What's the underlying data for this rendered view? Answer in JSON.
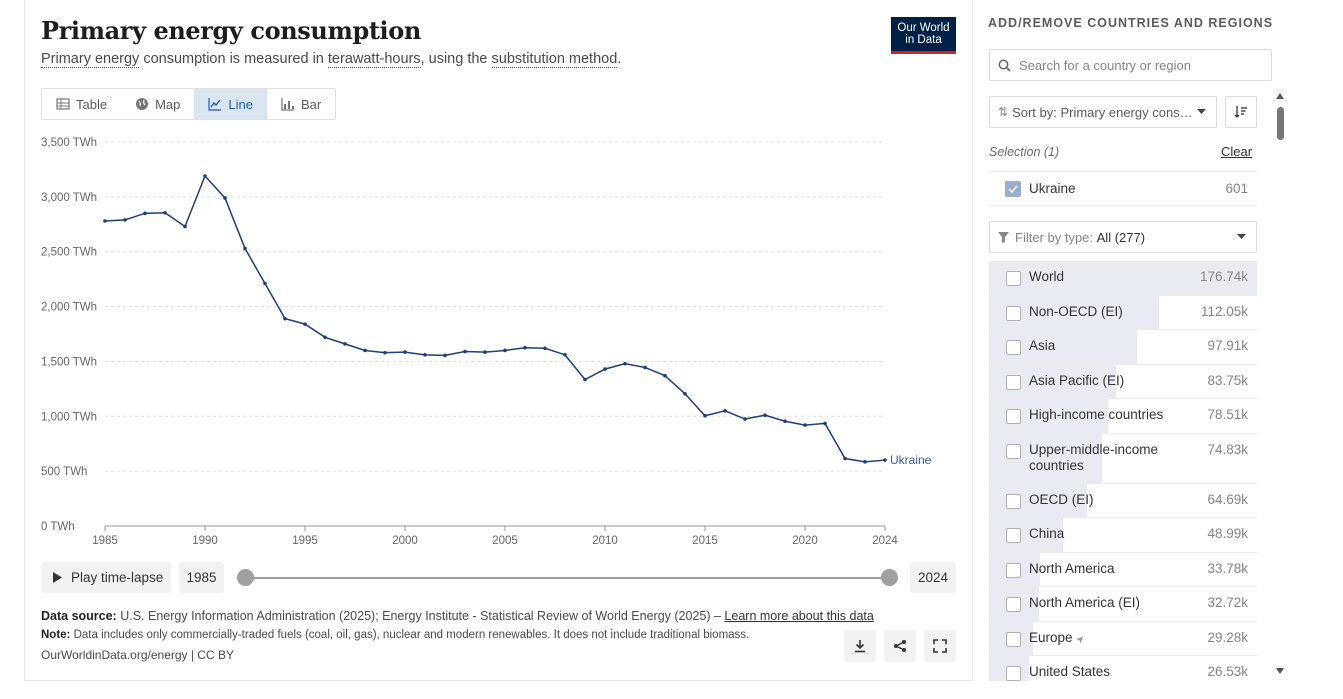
{
  "header": {
    "title": "Primary energy consumption",
    "subtitle_parts": [
      "Primary energy",
      " consumption is measured in ",
      "terawatt-hours",
      ", using the ",
      "substitution method",
      "."
    ],
    "logo_line1": "Our World",
    "logo_line2": "in Data"
  },
  "tabs": [
    {
      "label": "Table",
      "icon": "table-icon"
    },
    {
      "label": "Map",
      "icon": "globe-icon"
    },
    {
      "label": "Line",
      "icon": "line-chart-icon",
      "active": true
    },
    {
      "label": "Bar",
      "icon": "bar-chart-icon"
    }
  ],
  "chart_data": {
    "type": "line",
    "x": [
      1985,
      1986,
      1987,
      1988,
      1989,
      1990,
      1991,
      1992,
      1993,
      1994,
      1995,
      1996,
      1997,
      1998,
      1999,
      2000,
      2001,
      2002,
      2003,
      2004,
      2005,
      2006,
      2007,
      2008,
      2009,
      2010,
      2011,
      2012,
      2013,
      2014,
      2015,
      2016,
      2017,
      2018,
      2019,
      2020,
      2021,
      2022,
      2023,
      2024
    ],
    "series": [
      {
        "name": "Ukraine",
        "color": "#1f3f7a",
        "values": [
          2780,
          2790,
          2850,
          2855,
          2730,
          3190,
          2990,
          2530,
          2210,
          1890,
          1840,
          1720,
          1660,
          1600,
          1580,
          1585,
          1560,
          1555,
          1590,
          1585,
          1600,
          1625,
          1620,
          1560,
          1335,
          1430,
          1480,
          1445,
          1370,
          1205,
          1005,
          1050,
          975,
          1010,
          955,
          920,
          935,
          615,
          585,
          601
        ]
      }
    ],
    "yticks": [
      "0 TWh",
      "500 TWh",
      "1,000 TWh",
      "1,500 TWh",
      "2,000 TWh",
      "2,500 TWh",
      "3,000 TWh",
      "3,500 TWh"
    ],
    "xticks": [
      1985,
      1990,
      1995,
      2000,
      2005,
      2010,
      2015,
      2020,
      2024
    ],
    "ylim": [
      0,
      3500
    ],
    "xlim": [
      1985,
      2024
    ],
    "grid": true
  },
  "timeline": {
    "play_label": "Play time-lapse",
    "start_year": "1985",
    "end_year": "2024"
  },
  "footer": {
    "source_label": "Data source:",
    "source_text": " U.S. Energy Information Administration (2025); Energy Institute - Statistical Review of World Energy (2025) – ",
    "source_link": "Learn more about this data",
    "note_label": "Note:",
    "note_text": " Data includes only commercially-traded fuels (coal, oil, gas), nuclear and modern renewables. It does not include traditional biomass.",
    "credit": "OurWorldinData.org/energy | CC BY"
  },
  "sidebar": {
    "heading": "ADD/REMOVE COUNTRIES AND REGIONS",
    "search_placeholder": "Search for a country or region",
    "sort_label": "Sort by: Primary energy cons…",
    "selection_label": "Selection (1)",
    "clear_label": "Clear",
    "selected": {
      "name": "Ukraine",
      "value": "601"
    },
    "filter_prefix": "Filter by type: ",
    "filter_value": "All (277)",
    "items": [
      {
        "name": "World",
        "value": "176.74k",
        "share": 1.0
      },
      {
        "name": "Non-OECD (EI)",
        "value": "112.05k",
        "share": 0.634
      },
      {
        "name": "Asia",
        "value": "97.91k",
        "share": 0.554
      },
      {
        "name": "Asia Pacific (EI)",
        "value": "83.75k",
        "share": 0.474
      },
      {
        "name": "High-income countries",
        "value": "78.51k",
        "share": 0.444
      },
      {
        "name": "Upper-middle-income countries",
        "value": "74.83k",
        "share": 0.423
      },
      {
        "name": "OECD (EI)",
        "value": "64.69k",
        "share": 0.366
      },
      {
        "name": "China",
        "value": "48.99k",
        "share": 0.277
      },
      {
        "name": "North America",
        "value": "33.78k",
        "share": 0.191
      },
      {
        "name": "North America (EI)",
        "value": "32.72k",
        "share": 0.185
      },
      {
        "name": "Europe",
        "value": "29.28k",
        "share": 0.166
      },
      {
        "name": "United States",
        "value": "26.53k",
        "share": 0.15
      }
    ]
  }
}
